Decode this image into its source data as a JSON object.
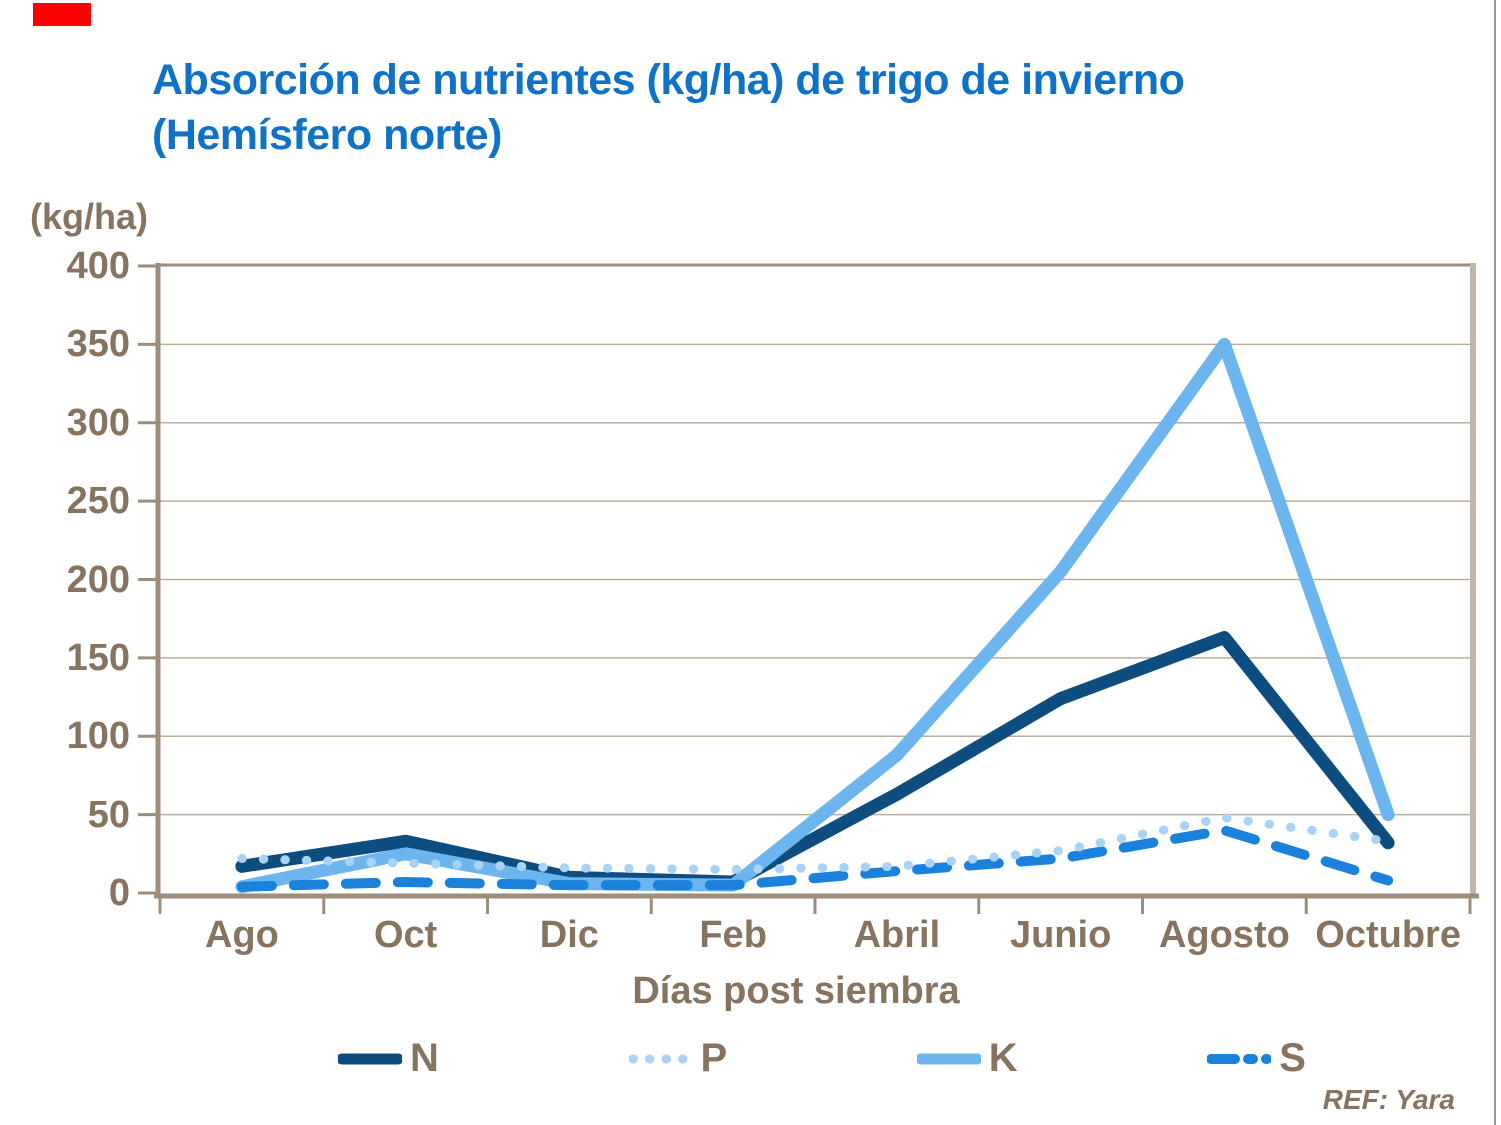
{
  "title": {
    "line1": "Absorción de nutrientes (kg/ha) de trigo de invierno",
    "line2": "(Hemísfero norte)"
  },
  "y_axis_label": "(kg/ha)",
  "x_axis_label": "Días post siembra",
  "ref_note": "REF: Yara",
  "colors": {
    "title_blue": "#0f72c6",
    "axis_text_brown": "#867461",
    "axis_line": "#9c8d7c",
    "plot_border_right": "#c1b5a8",
    "gridline": "#bcae9c",
    "red_marker": "#ff0000",
    "series_n": "#0e4d7f",
    "series_p": "#a8d3f7",
    "series_k": "#6cb5ef",
    "series_s": "#1b82dc"
  },
  "chart_data": {
    "type": "line",
    "title": "Absorción de nutrientes (kg/ha) de trigo de invierno (Hemísfero norte)",
    "xlabel": "Días post siembra",
    "ylabel": "(kg/ha)",
    "ylim": [
      0,
      400
    ],
    "ytick_step": 50,
    "grid": true,
    "legend_position": "bottom",
    "categories": [
      "Ago",
      "Oct",
      "Dic",
      "Feb",
      "Abril",
      "Junio",
      "Agosto",
      "Octubre"
    ],
    "series": [
      {
        "name": "N",
        "color": "#0e4d7f",
        "style": "solid",
        "width": 13,
        "values": [
          17,
          33,
          10,
          7,
          63,
          124,
          163,
          32
        ]
      },
      {
        "name": "P",
        "color": "#a8d3f7",
        "style": "dotted",
        "width": 9,
        "values": [
          22,
          19,
          16,
          15,
          17,
          27,
          48,
          33
        ]
      },
      {
        "name": "K",
        "color": "#6cb5ef",
        "style": "solid",
        "width": 13,
        "values": [
          4,
          25,
          6,
          5,
          88,
          205,
          350,
          50
        ]
      },
      {
        "name": "S",
        "color": "#1b82dc",
        "style": "dashed",
        "width": 10,
        "values": [
          4,
          7,
          5,
          5,
          14,
          22,
          40,
          8
        ]
      }
    ]
  }
}
